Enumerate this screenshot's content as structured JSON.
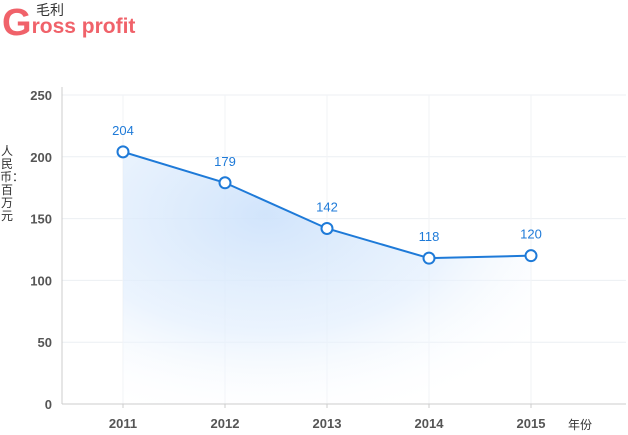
{
  "title": {
    "cn": "毛利",
    "en_initial": "G",
    "en_rest": "ross profit"
  },
  "chart_data": {
    "type": "line",
    "title": "毛利 Gross profit",
    "xlabel": "年份",
    "ylabel": "人民币：百万元",
    "categories": [
      "2011",
      "2012",
      "2013",
      "2014",
      "2015"
    ],
    "series": [
      {
        "name": "",
        "values": [
          204,
          179,
          142,
          118,
          120
        ],
        "labels": [
          "204",
          "179",
          "142",
          "118",
          "120"
        ]
      }
    ],
    "ylim": [
      0,
      250
    ],
    "yticks": [
      0,
      50,
      100,
      150,
      200,
      250
    ],
    "grid": true,
    "line_color": "#1e7ad8",
    "fill_color": "#cfe3fb"
  }
}
